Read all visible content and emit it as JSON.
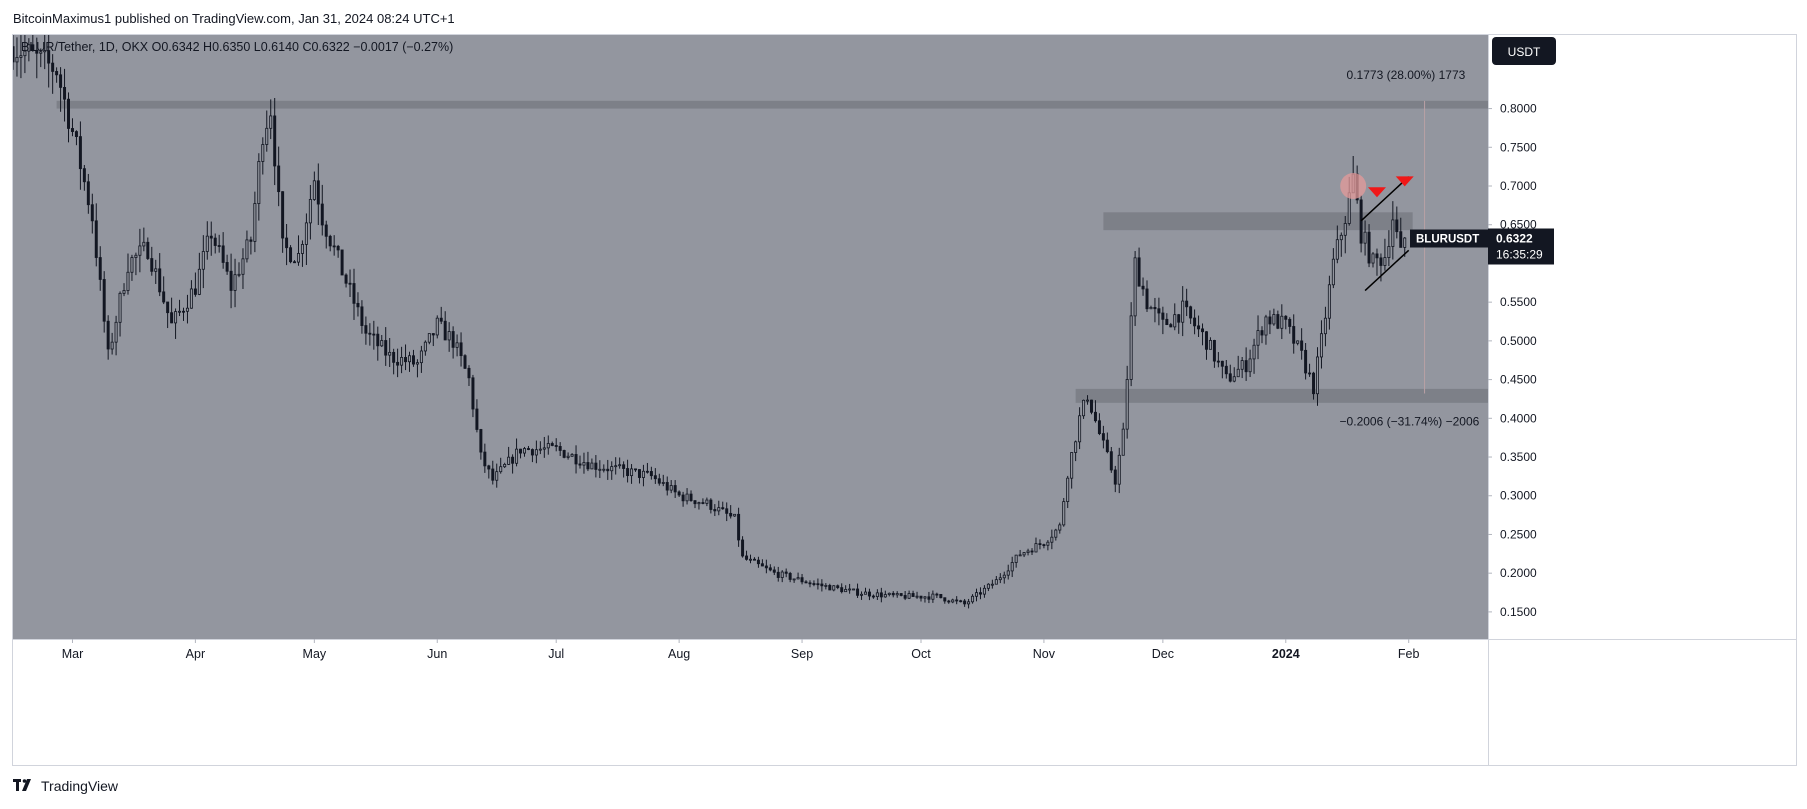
{
  "header": {
    "publish_line": "BitcoinMaximus1 published on TradingView.com, Jan 31, 2024 08:24 UTC+1"
  },
  "footer": {
    "brand": "TradingView",
    "brand_icon": "tradingview-logo-icon"
  },
  "colors": {
    "plot_bg": "#93969f",
    "candle": "#131722",
    "zone": "#7b7e87",
    "marker": "#f01818",
    "circle": "#e49a9a",
    "label_bg": "#131722",
    "label_text": "#ffffff",
    "axis_text": "#131722"
  },
  "chart_data": {
    "type": "candlestick",
    "symbol_line": {
      "symbol": "BLUR/Tether, 1D, OKX",
      "o_label": "O",
      "o_value": "0.6342",
      "h_label": "H",
      "h_value": "0.6350",
      "l_label": "L",
      "l_value": "0.6140",
      "c_label": "C",
      "c_value": "0.6322",
      "change": "−0.0017 (−0.27%)"
    },
    "currency_button": "USDT",
    "price_label": {
      "symbol": "BLURUSDT",
      "price": "0.6322",
      "countdown": "16:35:29",
      "value": 0.6322
    },
    "y_axis": {
      "ylim": [
        0.115,
        0.895
      ],
      "ticks": [
        {
          "v": 0.8,
          "label": "0.8000"
        },
        {
          "v": 0.75,
          "label": "0.7500"
        },
        {
          "v": 0.7,
          "label": "0.7000"
        },
        {
          "v": 0.65,
          "label": "0.6500"
        },
        {
          "v": 0.55,
          "label": "0.5500"
        },
        {
          "v": 0.5,
          "label": "0.5000"
        },
        {
          "v": 0.45,
          "label": "0.4500"
        },
        {
          "v": 0.4,
          "label": "0.4000"
        },
        {
          "v": 0.35,
          "label": "0.3500"
        },
        {
          "v": 0.3,
          "label": "0.3000"
        },
        {
          "v": 0.25,
          "label": "0.2500"
        },
        {
          "v": 0.2,
          "label": "0.2000"
        },
        {
          "v": 0.15,
          "label": "0.1500"
        }
      ]
    },
    "x_axis": {
      "range": [
        "2023-02-14",
        "2024-02-21"
      ],
      "ticks": [
        {
          "date": "2023-03-01",
          "label": "Mar",
          "bold": false
        },
        {
          "date": "2023-04-01",
          "label": "Apr",
          "bold": false
        },
        {
          "date": "2023-05-01",
          "label": "May",
          "bold": false
        },
        {
          "date": "2023-06-01",
          "label": "Jun",
          "bold": false
        },
        {
          "date": "2023-07-01",
          "label": "Jul",
          "bold": false
        },
        {
          "date": "2023-08-01",
          "label": "Aug",
          "bold": false
        },
        {
          "date": "2023-09-01",
          "label": "Sep",
          "bold": false
        },
        {
          "date": "2023-10-01",
          "label": "Oct",
          "bold": false
        },
        {
          "date": "2023-11-01",
          "label": "Nov",
          "bold": false
        },
        {
          "date": "2023-12-01",
          "label": "Dec",
          "bold": false
        },
        {
          "date": "2024-01-01",
          "label": "2024",
          "bold": true
        },
        {
          "date": "2024-02-01",
          "label": "Feb",
          "bold": false
        }
      ]
    },
    "price_path": [
      {
        "date": "2023-02-14",
        "close": 0.88
      },
      {
        "date": "2023-02-18",
        "close": 0.87
      },
      {
        "date": "2023-02-25",
        "close": 0.85
      },
      {
        "date": "2023-03-02",
        "close": 0.75
      },
      {
        "date": "2023-03-06",
        "close": 0.66
      },
      {
        "date": "2023-03-10",
        "close": 0.48
      },
      {
        "date": "2023-03-15",
        "close": 0.6
      },
      {
        "date": "2023-03-20",
        "close": 0.62
      },
      {
        "date": "2023-03-26",
        "close": 0.52
      },
      {
        "date": "2023-04-01",
        "close": 0.57
      },
      {
        "date": "2023-04-05",
        "close": 0.64
      },
      {
        "date": "2023-04-10",
        "close": 0.57
      },
      {
        "date": "2023-04-15",
        "close": 0.63
      },
      {
        "date": "2023-04-18",
        "close": 0.77
      },
      {
        "date": "2023-04-20",
        "close": 0.8
      },
      {
        "date": "2023-04-23",
        "close": 0.62
      },
      {
        "date": "2023-04-27",
        "close": 0.61
      },
      {
        "date": "2023-05-01",
        "close": 0.71
      },
      {
        "date": "2023-05-03",
        "close": 0.66
      },
      {
        "date": "2023-05-08",
        "close": 0.59
      },
      {
        "date": "2023-05-14",
        "close": 0.51
      },
      {
        "date": "2023-05-20",
        "close": 0.48
      },
      {
        "date": "2023-05-27",
        "close": 0.47
      },
      {
        "date": "2023-06-01",
        "close": 0.52
      },
      {
        "date": "2023-06-05",
        "close": 0.5
      },
      {
        "date": "2023-06-09",
        "close": 0.45
      },
      {
        "date": "2023-06-12",
        "close": 0.35
      },
      {
        "date": "2023-06-15",
        "close": 0.32
      },
      {
        "date": "2023-06-22",
        "close": 0.36
      },
      {
        "date": "2023-07-01",
        "close": 0.36
      },
      {
        "date": "2023-07-10",
        "close": 0.34
      },
      {
        "date": "2023-07-20",
        "close": 0.33
      },
      {
        "date": "2023-07-25",
        "close": 0.325
      },
      {
        "date": "2023-08-01",
        "close": 0.3
      },
      {
        "date": "2023-08-08",
        "close": 0.29
      },
      {
        "date": "2023-08-15",
        "close": 0.27
      },
      {
        "date": "2023-08-17",
        "close": 0.22
      },
      {
        "date": "2023-08-25",
        "close": 0.2
      },
      {
        "date": "2023-09-05",
        "close": 0.185
      },
      {
        "date": "2023-09-15",
        "close": 0.175
      },
      {
        "date": "2023-09-25",
        "close": 0.17
      },
      {
        "date": "2023-10-05",
        "close": 0.17
      },
      {
        "date": "2023-10-12",
        "close": 0.16
      },
      {
        "date": "2023-10-20",
        "close": 0.19
      },
      {
        "date": "2023-10-26",
        "close": 0.225
      },
      {
        "date": "2023-11-01",
        "close": 0.24
      },
      {
        "date": "2023-11-05",
        "close": 0.26
      },
      {
        "date": "2023-11-07",
        "close": 0.33
      },
      {
        "date": "2023-11-10",
        "close": 0.4
      },
      {
        "date": "2023-11-12",
        "close": 0.43
      },
      {
        "date": "2023-11-15",
        "close": 0.38
      },
      {
        "date": "2023-11-19",
        "close": 0.32
      },
      {
        "date": "2023-11-21",
        "close": 0.38
      },
      {
        "date": "2023-11-24",
        "close": 0.6
      },
      {
        "date": "2023-11-27",
        "close": 0.55
      },
      {
        "date": "2023-12-01",
        "close": 0.52
      },
      {
        "date": "2023-12-06",
        "close": 0.54
      },
      {
        "date": "2023-12-12",
        "close": 0.5
      },
      {
        "date": "2023-12-17",
        "close": 0.45
      },
      {
        "date": "2023-12-22",
        "close": 0.47
      },
      {
        "date": "2023-12-27",
        "close": 0.53
      },
      {
        "date": "2024-01-01",
        "close": 0.52
      },
      {
        "date": "2024-01-05",
        "close": 0.48
      },
      {
        "date": "2024-01-08",
        "close": 0.44
      },
      {
        "date": "2024-01-10",
        "close": 0.5
      },
      {
        "date": "2024-01-13",
        "close": 0.6
      },
      {
        "date": "2024-01-16",
        "close": 0.66
      },
      {
        "date": "2024-01-18",
        "close": 0.71
      },
      {
        "date": "2024-01-20",
        "close": 0.64
      },
      {
        "date": "2024-01-23",
        "close": 0.6
      },
      {
        "date": "2024-01-26",
        "close": 0.61
      },
      {
        "date": "2024-01-28",
        "close": 0.66
      },
      {
        "date": "2024-01-30",
        "close": 0.61
      },
      {
        "date": "2024-01-31",
        "close": 0.6322
      }
    ],
    "zones": [
      {
        "name": "resistance-high",
        "from_date": "2023-02-25",
        "to_date": "2024-02-21",
        "y_low": 0.8,
        "y_high": 0.81
      },
      {
        "name": "resistance-mid",
        "from_date": "2023-11-16",
        "to_date": "2024-02-02",
        "y_low": 0.643,
        "y_high": 0.666
      },
      {
        "name": "support",
        "from_date": "2023-11-09",
        "to_date": "2024-02-21",
        "y_low": 0.42,
        "y_high": 0.438
      }
    ],
    "wedge": {
      "upper": [
        [
          "2024-01-20",
          0.655
        ],
        [
          "2024-02-01",
          0.712
        ]
      ],
      "lower": [
        [
          "2024-01-21",
          0.565
        ],
        [
          "2024-02-01",
          0.617
        ]
      ]
    },
    "markers": [
      {
        "shape": "circle",
        "date": "2024-01-18",
        "value": 0.7
      },
      {
        "shape": "down-triangle",
        "date": "2024-01-24",
        "value": 0.692
      },
      {
        "shape": "down-triangle",
        "date": "2024-01-31",
        "value": 0.706
      }
    ],
    "measure": {
      "date": "2024-02-05",
      "top_value": 0.81,
      "bottom_value": 0.432,
      "top_label": "0.1773 (28.00%) 1773",
      "bottom_label": "−0.2006 (−31.74%) −2006"
    }
  }
}
